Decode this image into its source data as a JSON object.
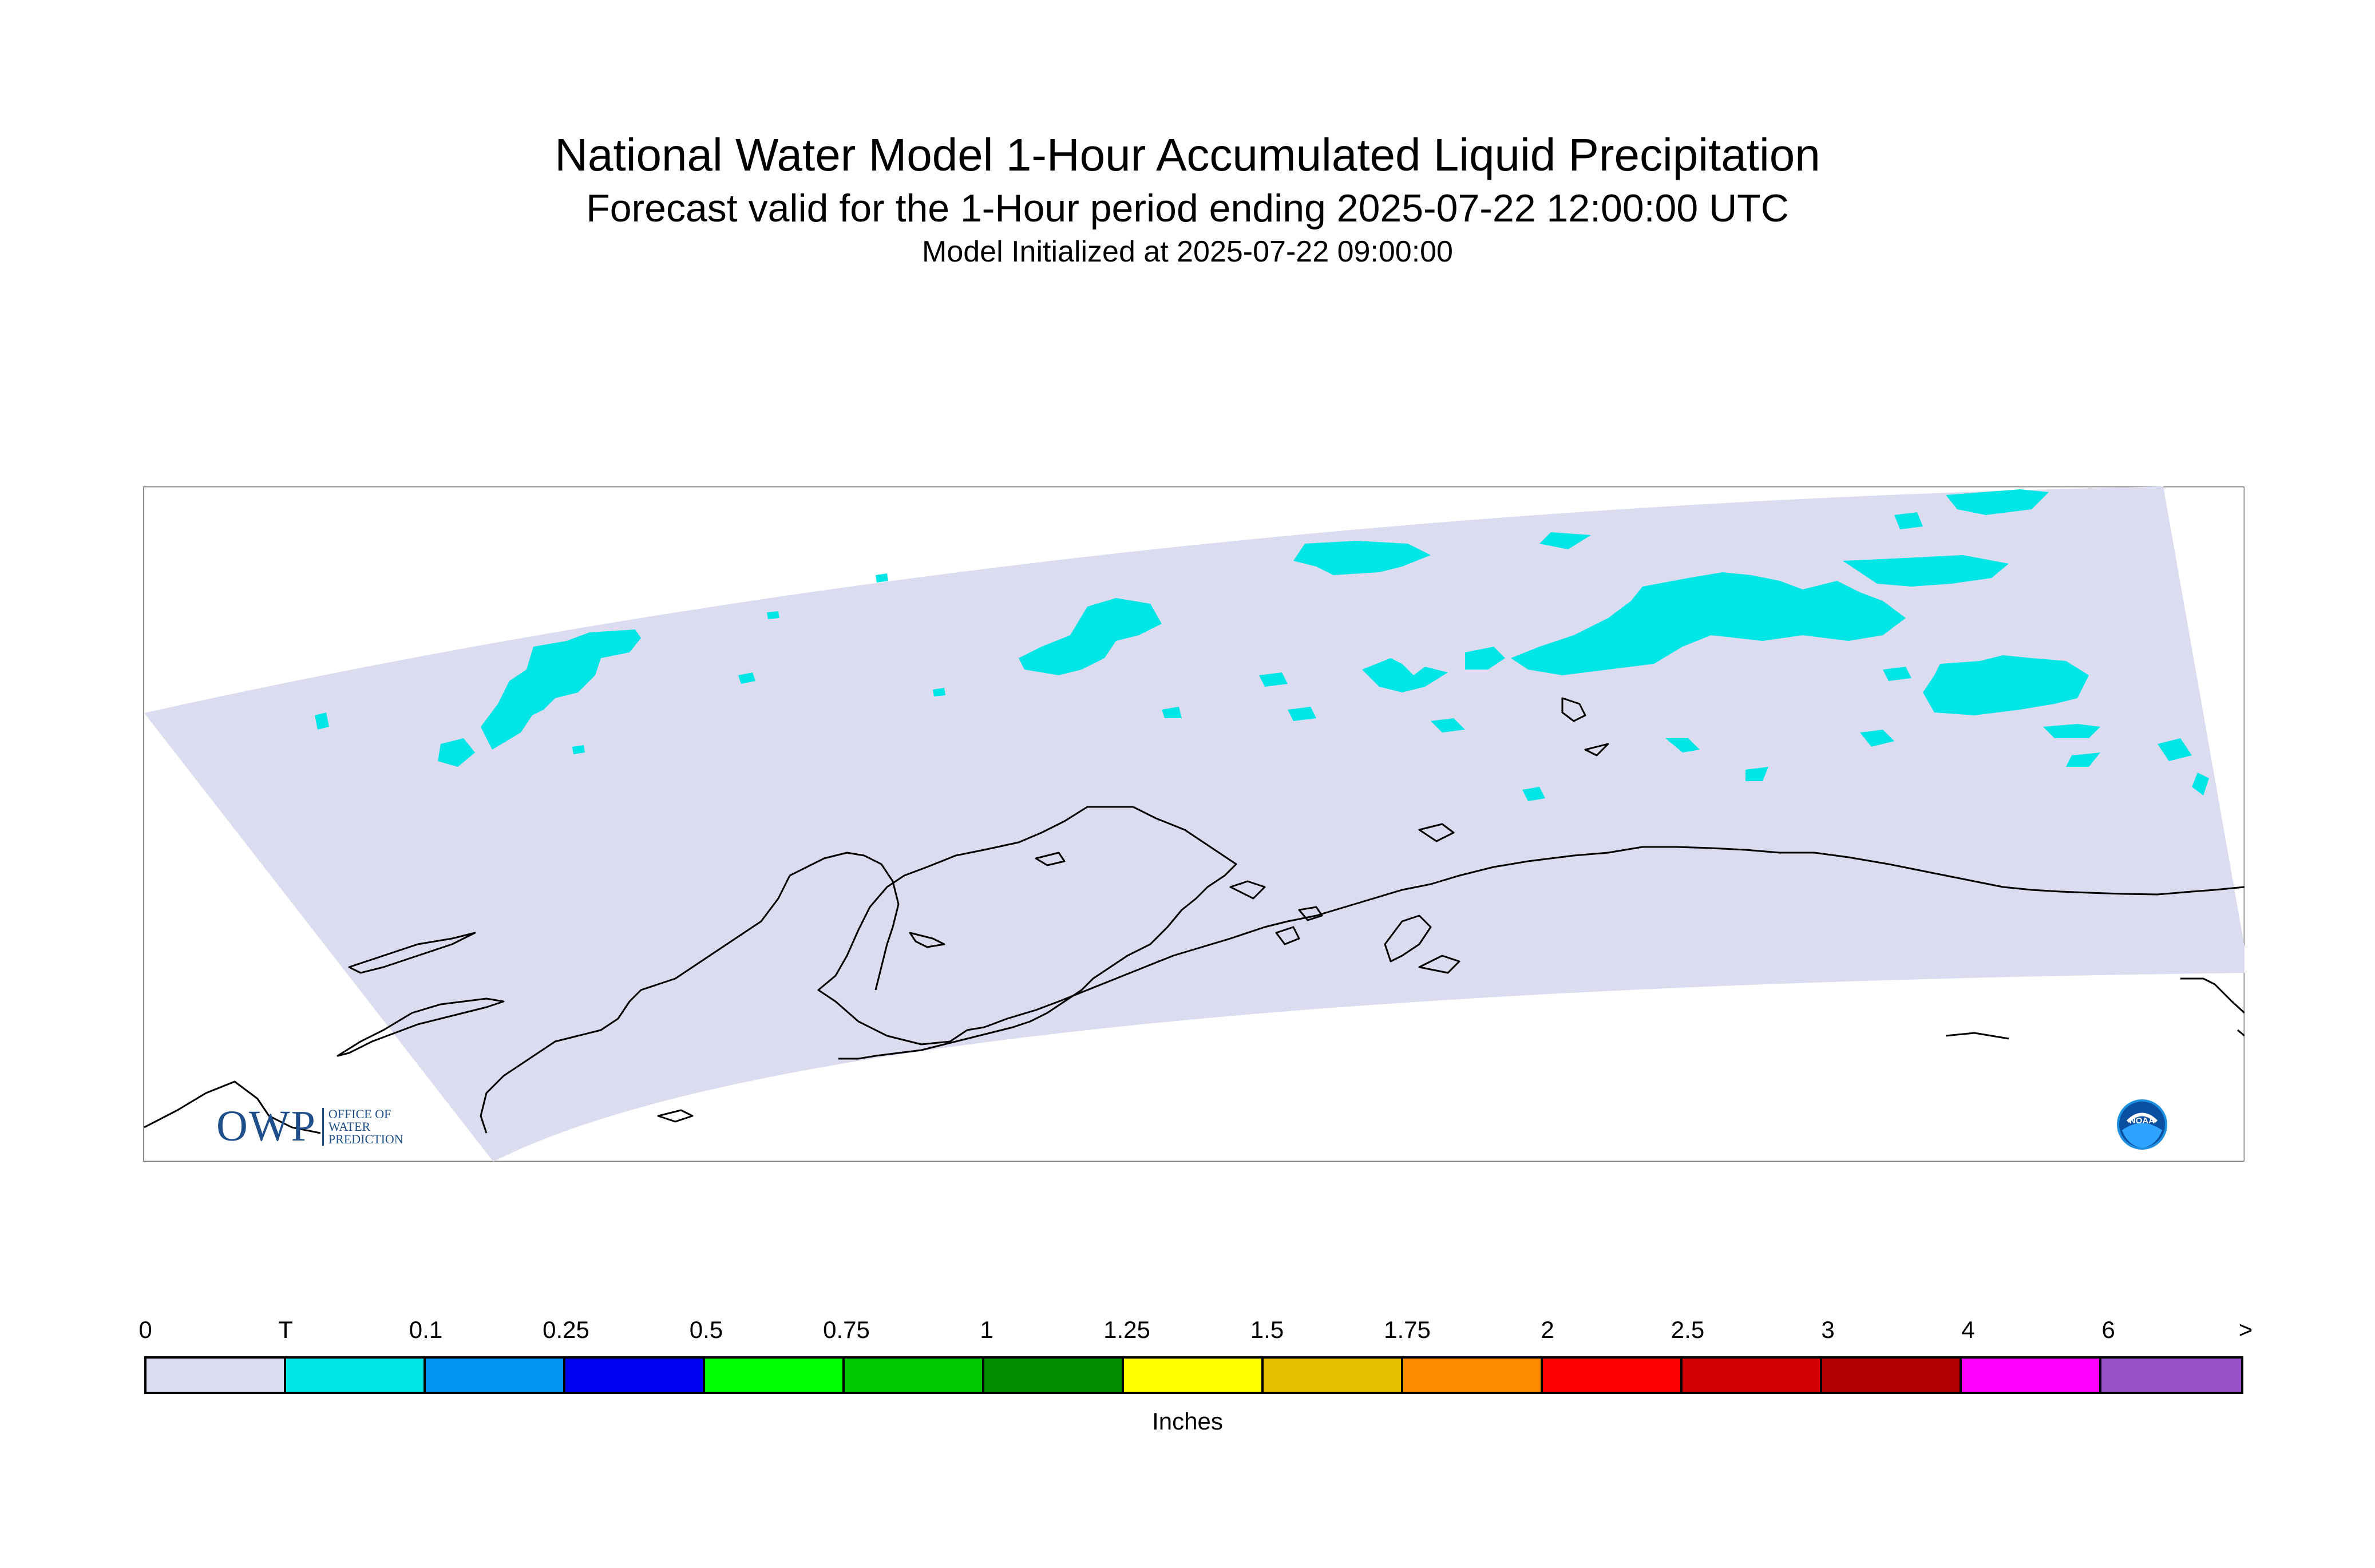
{
  "header": {
    "title": "National Water Model 1-Hour Accumulated Liquid Precipitation",
    "subtitle": "Forecast valid for the 1-Hour period ending 2025-07-22 12:00:00 UTC",
    "init_line": "Model Initialized at 2025-07-22 09:00:00"
  },
  "legend": {
    "tick_labels": [
      "0",
      "T",
      "0.1",
      "0.25",
      "0.5",
      "0.75",
      "1",
      "1.25",
      "1.5",
      "1.75",
      "2",
      "2.5",
      "3",
      "4",
      "6",
      ">"
    ],
    "colors": [
      "#dcdcf0",
      "#00e6e6",
      "#0096f0",
      "#0000f0",
      "#00ff00",
      "#00c800",
      "#008c00",
      "#ffff00",
      "#e6be00",
      "#ff8c00",
      "#ff0000",
      "#d20000",
      "#b40000",
      "#ff00ff",
      "#9650c8"
    ],
    "units": "Inches"
  },
  "map": {
    "domain_fill": "#dcdcf0",
    "precip_color": "#00e6e6",
    "coast_color": "#000000"
  },
  "logos": {
    "owp_mark": "OWP",
    "owp_text": [
      "OFFICE OF",
      "WATER",
      "PREDICTION"
    ],
    "noaa_text": "NOAA"
  }
}
